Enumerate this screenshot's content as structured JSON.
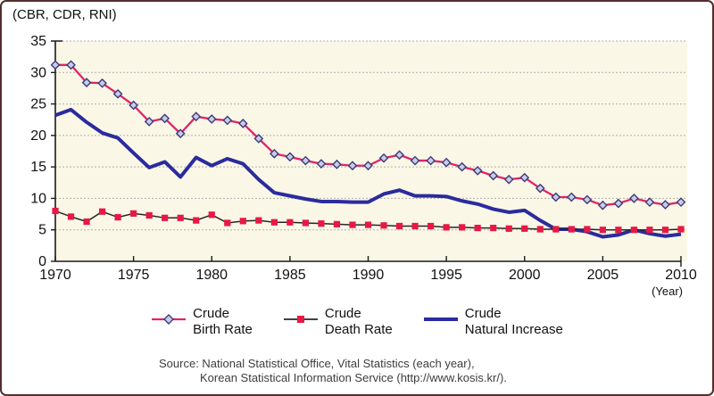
{
  "figure": {
    "y_axis_unit_label": "(CBR, CDR, RNI)",
    "x_axis_unit_label": "(Year)"
  },
  "chart_data": {
    "type": "line",
    "title": "",
    "x": [
      1970,
      1971,
      1972,
      1973,
      1974,
      1975,
      1976,
      1977,
      1978,
      1979,
      1980,
      1981,
      1982,
      1983,
      1984,
      1985,
      1986,
      1987,
      1988,
      1989,
      1990,
      1991,
      1992,
      1993,
      1994,
      1995,
      1996,
      1997,
      1998,
      1999,
      2000,
      2001,
      2002,
      2003,
      2004,
      2005,
      2006,
      2007,
      2008,
      2009,
      2010
    ],
    "x_tick_labels": [
      "1970",
      "1975",
      "1980",
      "1985",
      "1990",
      "1995",
      "2000",
      "2005",
      "2010"
    ],
    "x_ticks": [
      1970,
      1975,
      1980,
      1985,
      1990,
      1995,
      2000,
      2005,
      2010
    ],
    "y_ticks": [
      0,
      5,
      10,
      15,
      20,
      25,
      30,
      35
    ],
    "ylim": [
      0,
      35
    ],
    "xlim": [
      1970,
      2010
    ],
    "grid": "horizontal-dotted",
    "legend_position": "bottom",
    "series": [
      {
        "name": "Crude Birth Rate",
        "marker": "diamond",
        "values": [
          31.2,
          31.2,
          28.4,
          28.3,
          26.6,
          24.8,
          22.2,
          22.7,
          20.3,
          23.0,
          22.6,
          22.4,
          21.9,
          19.5,
          17.1,
          16.6,
          16.0,
          15.5,
          15.4,
          15.2,
          15.2,
          16.4,
          16.9,
          16.0,
          16.0,
          15.7,
          15.0,
          14.4,
          13.6,
          13.0,
          13.3,
          11.6,
          10.2,
          10.2,
          9.8,
          8.9,
          9.2,
          10.0,
          9.4,
          9.0,
          9.4
        ]
      },
      {
        "name": "Crude Death Rate",
        "marker": "square",
        "values": [
          8.0,
          7.1,
          6.3,
          7.9,
          7.0,
          7.6,
          7.3,
          6.9,
          6.9,
          6.5,
          7.4,
          6.1,
          6.4,
          6.5,
          6.2,
          6.2,
          6.1,
          6.0,
          5.9,
          5.8,
          5.8,
          5.7,
          5.6,
          5.6,
          5.6,
          5.4,
          5.4,
          5.3,
          5.3,
          5.2,
          5.2,
          5.1,
          5.1,
          5.1,
          5.1,
          5.0,
          5.0,
          5.0,
          5.0,
          5.0,
          5.1
        ]
      },
      {
        "name": "Crude Natural Increase",
        "marker": "none",
        "values": [
          23.2,
          24.1,
          22.1,
          20.4,
          19.6,
          17.2,
          14.9,
          15.8,
          13.4,
          16.5,
          15.2,
          16.3,
          15.5,
          13.0,
          10.9,
          10.4,
          9.9,
          9.5,
          9.5,
          9.4,
          9.4,
          10.7,
          11.3,
          10.4,
          10.4,
          10.3,
          9.6,
          9.1,
          8.3,
          7.8,
          8.1,
          6.5,
          5.1,
          5.1,
          4.7,
          3.9,
          4.2,
          5.0,
          4.4,
          4.0,
          4.3
        ]
      }
    ],
    "legend": [
      {
        "line1": "Crude",
        "line2": "Birth Rate"
      },
      {
        "line1": "Crude",
        "line2": "Death Rate"
      },
      {
        "line1": "Crude",
        "line2": "Natural Increase"
      }
    ],
    "colors": {
      "birth_line": "#e0246a",
      "birth_marker_fill": "#c9cbe8",
      "birth_marker_stroke": "#3c3c78",
      "death_line": "#262626",
      "death_marker": "#e81846",
      "rni_line": "#2b2b9e",
      "plot_background": "#faf7e6",
      "gridline": "#b0b0b0",
      "axis": "#1a1a1a",
      "figure_border": "#532e2e"
    },
    "source_line1": "Source: National Statistical Office, Vital Statistics (each year),",
    "source_line2": "Korean Statistical Information Service (http://www.kosis.kr/)."
  }
}
